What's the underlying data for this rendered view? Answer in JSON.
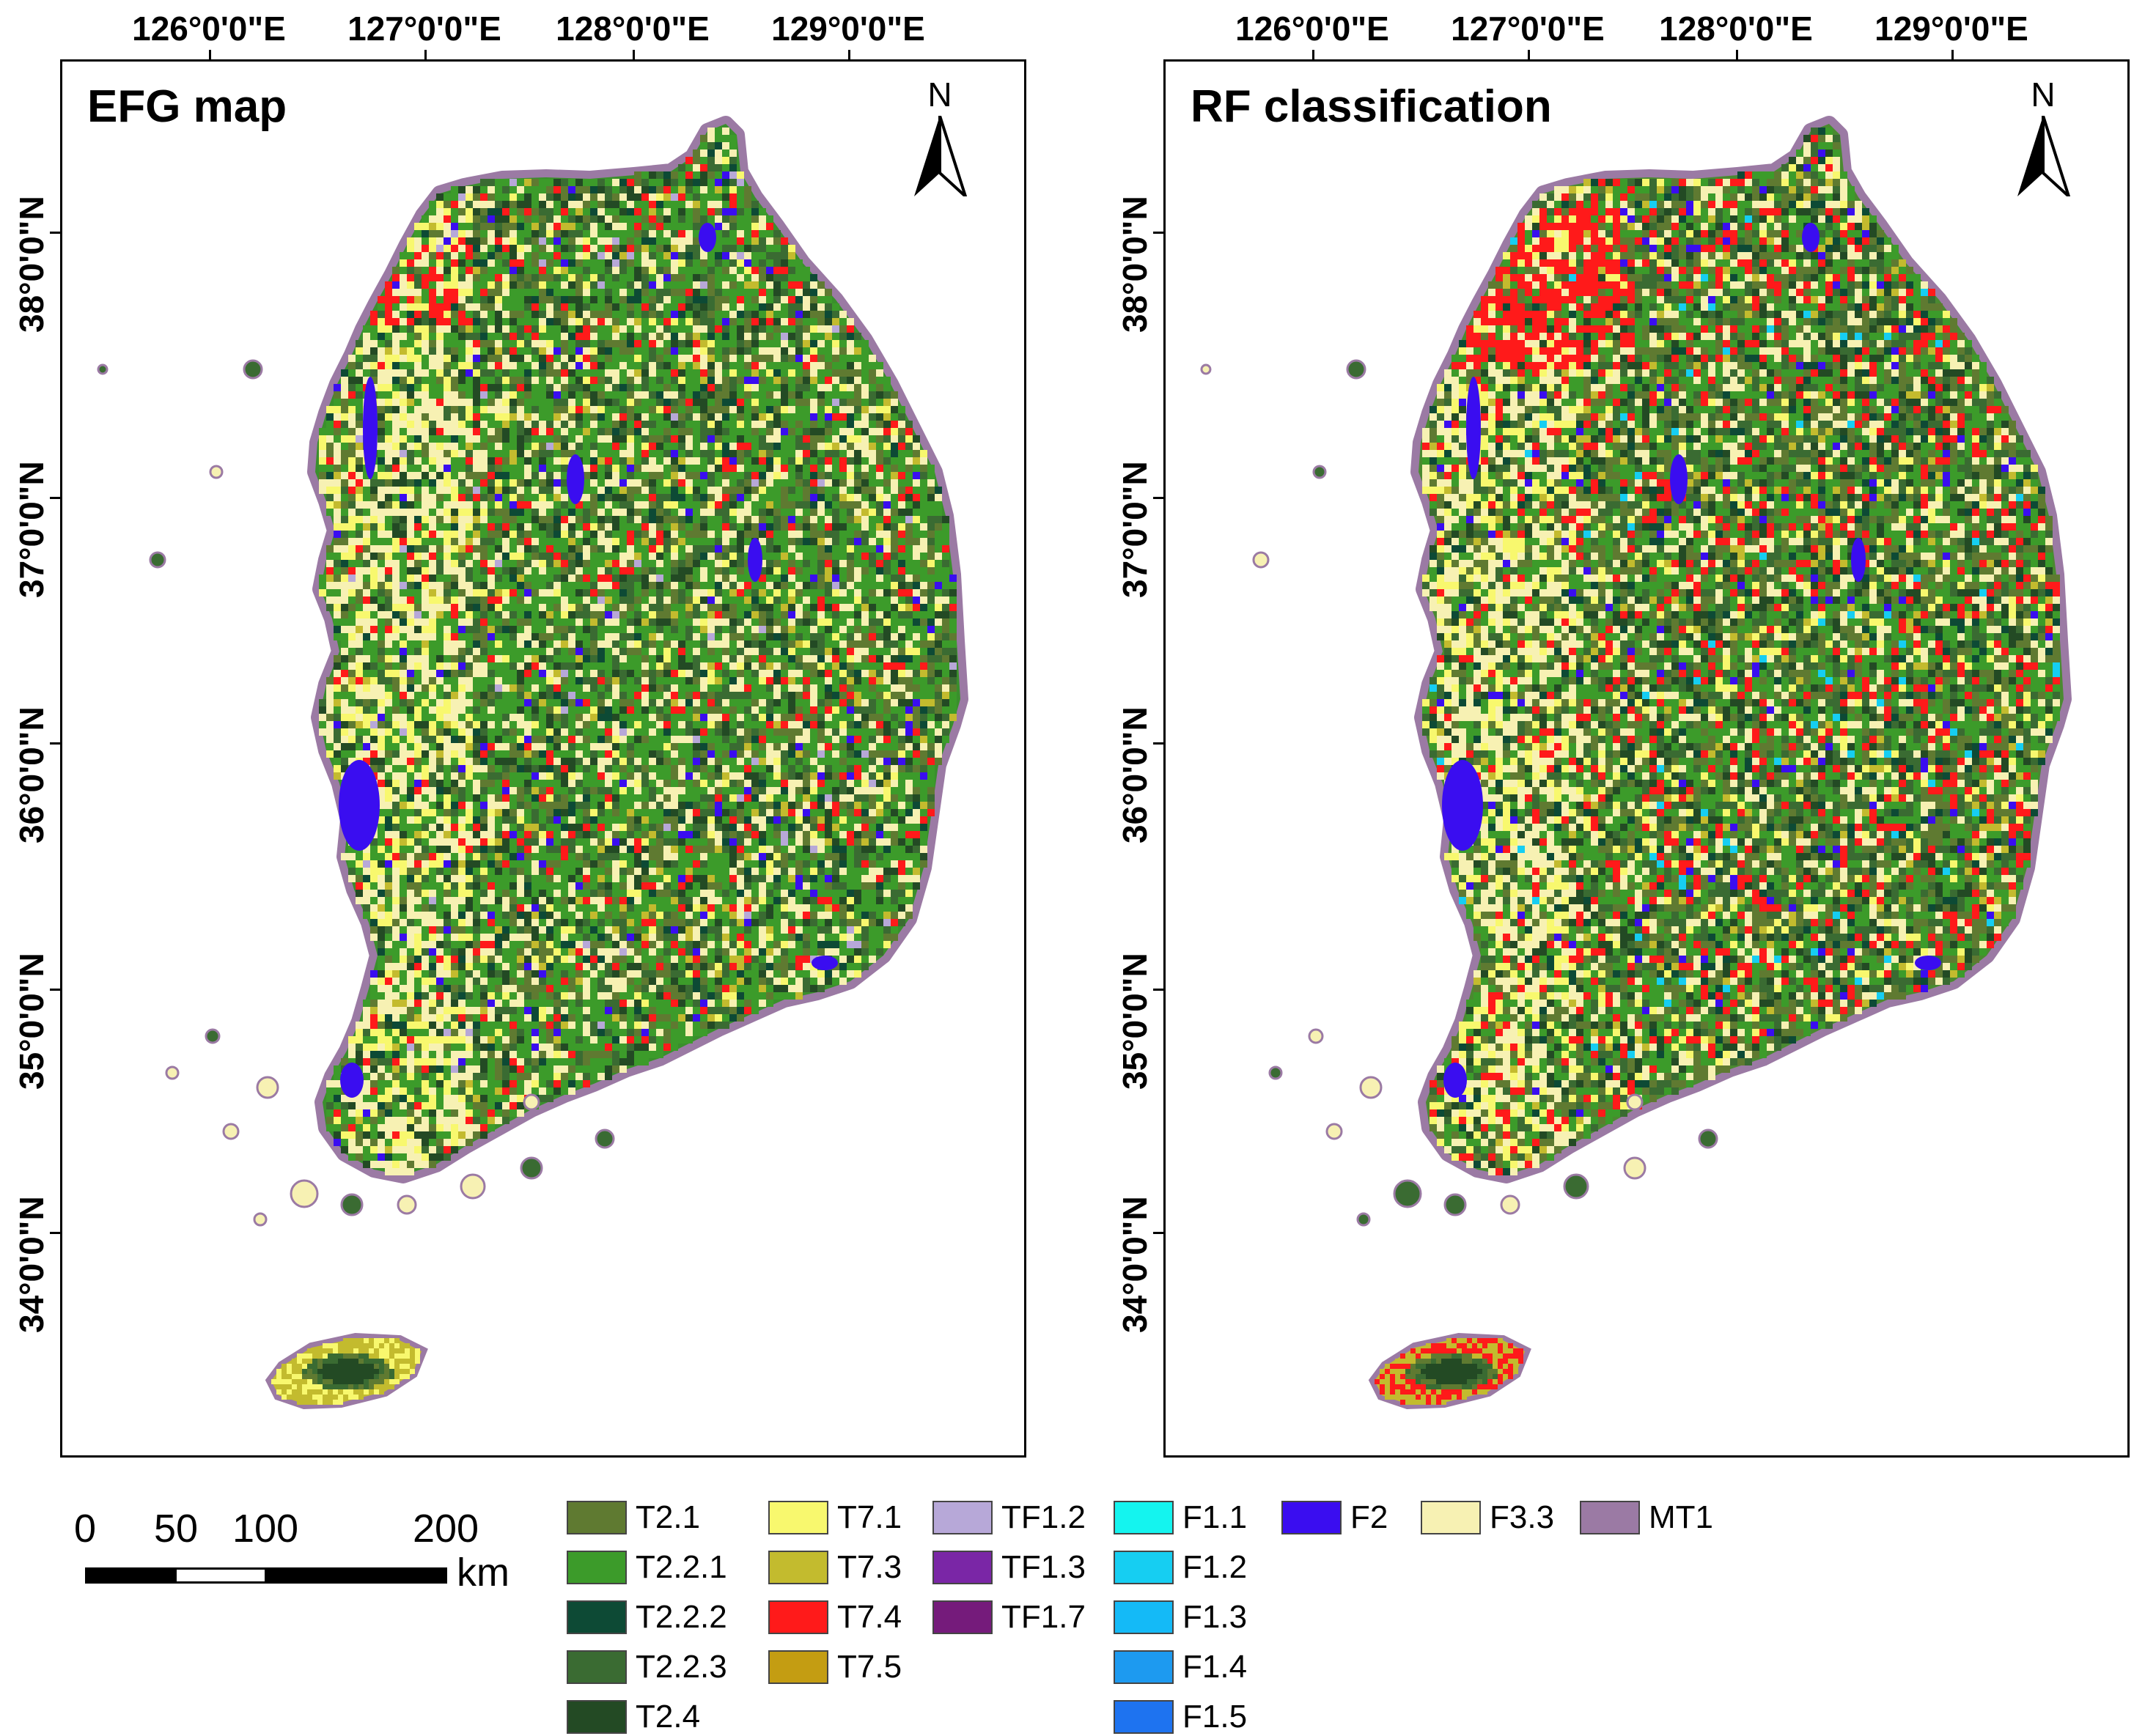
{
  "panels": [
    {
      "title": "EFG map",
      "variant": "efg"
    },
    {
      "title": "RF classification",
      "variant": "rf"
    }
  ],
  "north_arrow": {
    "label": "N"
  },
  "longitude_ticks": [
    "126°0'0\"E",
    "127°0'0\"E",
    "128°0'0\"E",
    "129°0'0\"E"
  ],
  "latitude_ticks": [
    "38°0'0\"N",
    "37°0'0\"N",
    "36°0'0\"N",
    "35°0'0\"N",
    "34°0'0\"N"
  ],
  "scale_bar": {
    "labels": [
      "0",
      "50",
      "100",
      "200"
    ],
    "unit": "km"
  },
  "legend": [
    {
      "code": "T2.1",
      "color": "#5f7a31"
    },
    {
      "code": "T2.2.1",
      "color": "#3c9b2a"
    },
    {
      "code": "T2.2.2",
      "color": "#0d4a35"
    },
    {
      "code": "T2.2.3",
      "color": "#3a6b32"
    },
    {
      "code": "T2.4",
      "color": "#234a24"
    },
    {
      "code": "T7.1",
      "color": "#f8f86e"
    },
    {
      "code": "T7.3",
      "color": "#c3bb2e"
    },
    {
      "code": "T7.4",
      "color": "#ff1a1a"
    },
    {
      "code": "T7.5",
      "color": "#c49d12"
    },
    {
      "code": "TF1.2",
      "color": "#b7a8d8"
    },
    {
      "code": "TF1.3",
      "color": "#7a26a6"
    },
    {
      "code": "TF1.7",
      "color": "#751b7b"
    },
    {
      "code": "F1.1",
      "color": "#14f4ef"
    },
    {
      "code": "F1.2",
      "color": "#16cef2"
    },
    {
      "code": "F1.3",
      "color": "#14baf7"
    },
    {
      "code": "F1.4",
      "color": "#1d9af0"
    },
    {
      "code": "F1.5",
      "color": "#1e73f0"
    },
    {
      "code": "F2",
      "color": "#3a0df0"
    },
    {
      "code": "F3.3",
      "color": "#f7f1b3"
    },
    {
      "code": "MT1",
      "color": "#9b7aa4"
    }
  ]
}
